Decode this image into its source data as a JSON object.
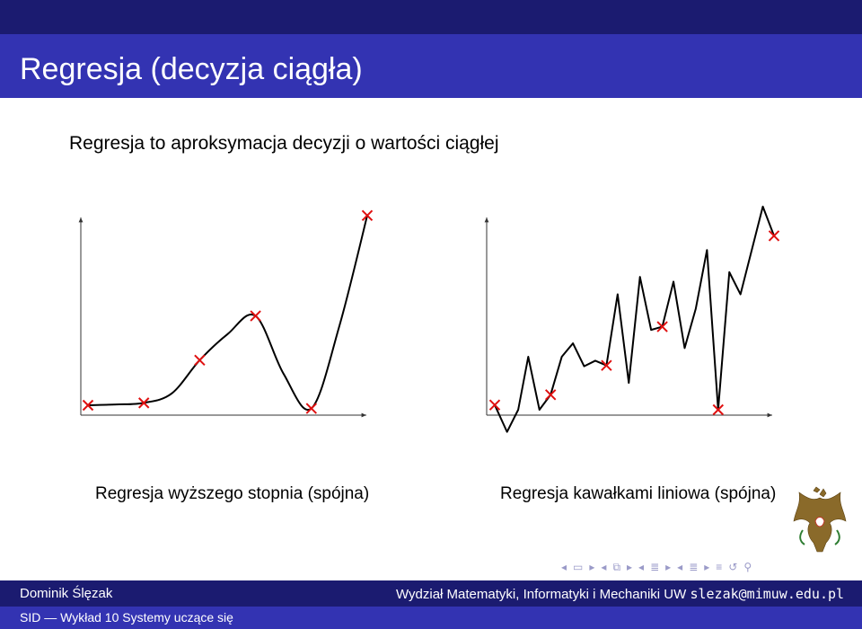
{
  "slide": {
    "title": "Regresja (decyzja ciągła)",
    "intro": "Regresja to aproksymacja decyzji o wartości ciągłej"
  },
  "colors": {
    "dark": "#1b1b70",
    "header": "#3333b2",
    "marker": "#e01010",
    "nav": "#9a9ac8"
  },
  "chart_data": [
    {
      "type": "line",
      "title": "",
      "caption": "Regresja wyższego stopnia (spójna)",
      "xlabel": "",
      "ylabel": "",
      "points": [
        [
          0,
          0
        ],
        [
          1,
          0.3
        ],
        [
          2,
          5.7
        ],
        [
          3,
          11.3
        ],
        [
          4,
          -0.4
        ],
        [
          5,
          24
        ]
      ],
      "curve": [
        [
          0,
          0
        ],
        [
          0.5,
          0.1
        ],
        [
          1,
          0.3
        ],
        [
          1.5,
          1.5
        ],
        [
          2,
          5.7
        ],
        [
          2.5,
          9
        ],
        [
          3,
          11.3
        ],
        [
          3.5,
          4
        ],
        [
          4,
          -0.4
        ],
        [
          4.5,
          10
        ],
        [
          5,
          24
        ]
      ]
    },
    {
      "type": "line",
      "title": "",
      "caption": "Regresja kawałkami liniowa (spójna)",
      "xlabel": "",
      "ylabel": "",
      "points": [
        [
          0,
          0.6
        ],
        [
          1,
          1.9
        ],
        [
          2,
          5.6
        ],
        [
          3,
          10.5
        ],
        [
          4,
          0
        ],
        [
          5,
          22
        ]
      ],
      "curve": [
        [
          0,
          0.6
        ],
        [
          0.22,
          -2.8
        ],
        [
          0.42,
          0
        ],
        [
          0.6,
          6.7
        ],
        [
          0.8,
          0
        ],
        [
          1,
          1.9
        ],
        [
          1.2,
          6.7
        ],
        [
          1.4,
          8.4
        ],
        [
          1.6,
          5.5
        ],
        [
          1.8,
          6.2
        ],
        [
          2,
          5.6
        ],
        [
          2.2,
          14.6
        ],
        [
          2.4,
          3.4
        ],
        [
          2.6,
          16.8
        ],
        [
          2.8,
          10.1
        ],
        [
          3,
          10.5
        ],
        [
          3.2,
          16.2
        ],
        [
          3.4,
          7.8
        ],
        [
          3.6,
          12.8
        ],
        [
          3.8,
          20.2
        ],
        [
          4,
          0
        ],
        [
          4.2,
          17.4
        ],
        [
          4.4,
          14.6
        ],
        [
          4.8,
          25.7
        ],
        [
          5,
          22
        ]
      ]
    }
  ],
  "navigation": {
    "icons": [
      "prev-frame-icon",
      "frame-icon",
      "next-frame-icon",
      "prev-subsection-icon",
      "subsection-icon",
      "next-subsection-icon",
      "prev-section-icon",
      "section-icon",
      "next-section-icon",
      "prev-slide-icon",
      "slide-icon",
      "next-slide-icon",
      "document-icon",
      "back-icon",
      "search-icon"
    ]
  },
  "footer": {
    "author": "Dominik Ślęzak",
    "institution": "Wydział Matematyki, Informatyki i Mechaniki UW",
    "email": "slezak@mimuw.edu.pl",
    "course": "SID — Wykład 10 Systemy uczące się"
  }
}
